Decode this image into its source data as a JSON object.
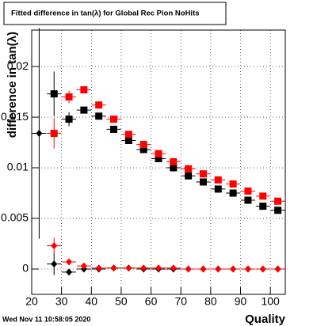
{
  "chart_data": {
    "type": "scatter",
    "title": "Fitted difference in tan(λ) for Global Rec Pion NoHits",
    "x_label": "Quality",
    "y_label": "difference in tan(λ)",
    "footer": "Wed Nov 11 10:58:05 2020",
    "x": [
      22.5,
      27.5,
      32.5,
      37.5,
      42.5,
      47.5,
      52.5,
      57.5,
      62.5,
      67.5,
      72.5,
      77.5,
      82.5,
      87.5,
      92.5,
      97.5,
      102.5
    ],
    "series": [
      {
        "color": "#000000",
        "marker": "diamond",
        "values": [
          0.0134,
          0.0005,
          -0.0003,
          0.0,
          0.0,
          0.0001,
          0.0001,
          0.0,
          0.0,
          0.0,
          0.0,
          0.0,
          0.0,
          0.0,
          0.0,
          0.0,
          0.0
        ],
        "errors": [
          0.0104,
          0.0011,
          0.0003,
          0.0002,
          0.0002,
          0.0001,
          0.0001,
          0.0001,
          0.0001,
          0.0001,
          0.0001,
          0.0001,
          0.0001,
          0.0001,
          0.0001,
          0.0001,
          0.0001
        ]
      },
      {
        "color": "#ff0000",
        "marker": "diamond",
        "values": [
          null,
          0.0023,
          0.0007,
          0.0003,
          0.0001,
          0.0001,
          0.0001,
          0.0001,
          0.0001,
          0.0001,
          0.0,
          0.0,
          0.0,
          0.0,
          0.0,
          0.0,
          0.0
        ],
        "errors": [
          null,
          0.0008,
          0.0003,
          0.0002,
          0.0001,
          0.0001,
          0.0001,
          0.0001,
          0.0001,
          0.0001,
          0.0001,
          0.0001,
          0.0001,
          0.0001,
          0.0001,
          0.0001,
          0.0001
        ]
      },
      {
        "color": "#000000",
        "marker": "square",
        "values": [
          null,
          0.0173,
          0.0148,
          0.0157,
          0.0151,
          0.0138,
          0.0127,
          0.0118,
          0.0109,
          0.01,
          0.0092,
          0.0086,
          0.0079,
          0.0075,
          0.0068,
          0.0062,
          0.0058
        ],
        "errors": [
          null,
          0.0022,
          0.0007,
          0.0003,
          0.0002,
          0.0002,
          0.0002,
          0.0001,
          0.0001,
          0.0001,
          0.0001,
          0.0001,
          0.0001,
          0.0001,
          0.0001,
          0.0001,
          0.0001
        ]
      },
      {
        "color": "#ff0000",
        "marker": "square",
        "values": [
          null,
          0.0134,
          0.017,
          0.0177,
          0.0162,
          0.0148,
          0.0133,
          0.0123,
          0.0114,
          0.0106,
          0.0099,
          0.0094,
          0.0088,
          0.0084,
          0.0077,
          0.0072,
          0.0067
        ],
        "errors": [
          null,
          0.0015,
          0.0006,
          0.0003,
          0.0002,
          0.0002,
          0.0002,
          0.0001,
          0.0001,
          0.0001,
          0.0001,
          0.0001,
          0.0001,
          0.0001,
          0.0001,
          0.0001,
          0.0001
        ]
      }
    ],
    "xlim": [
      20,
      105
    ],
    "ylim": [
      -0.0025,
      0.0236
    ],
    "xticks": [
      20,
      30,
      40,
      50,
      60,
      70,
      80,
      90,
      100
    ],
    "yticks": [
      0,
      0.005,
      0.01,
      0.015,
      0.02
    ],
    "grid": true
  }
}
